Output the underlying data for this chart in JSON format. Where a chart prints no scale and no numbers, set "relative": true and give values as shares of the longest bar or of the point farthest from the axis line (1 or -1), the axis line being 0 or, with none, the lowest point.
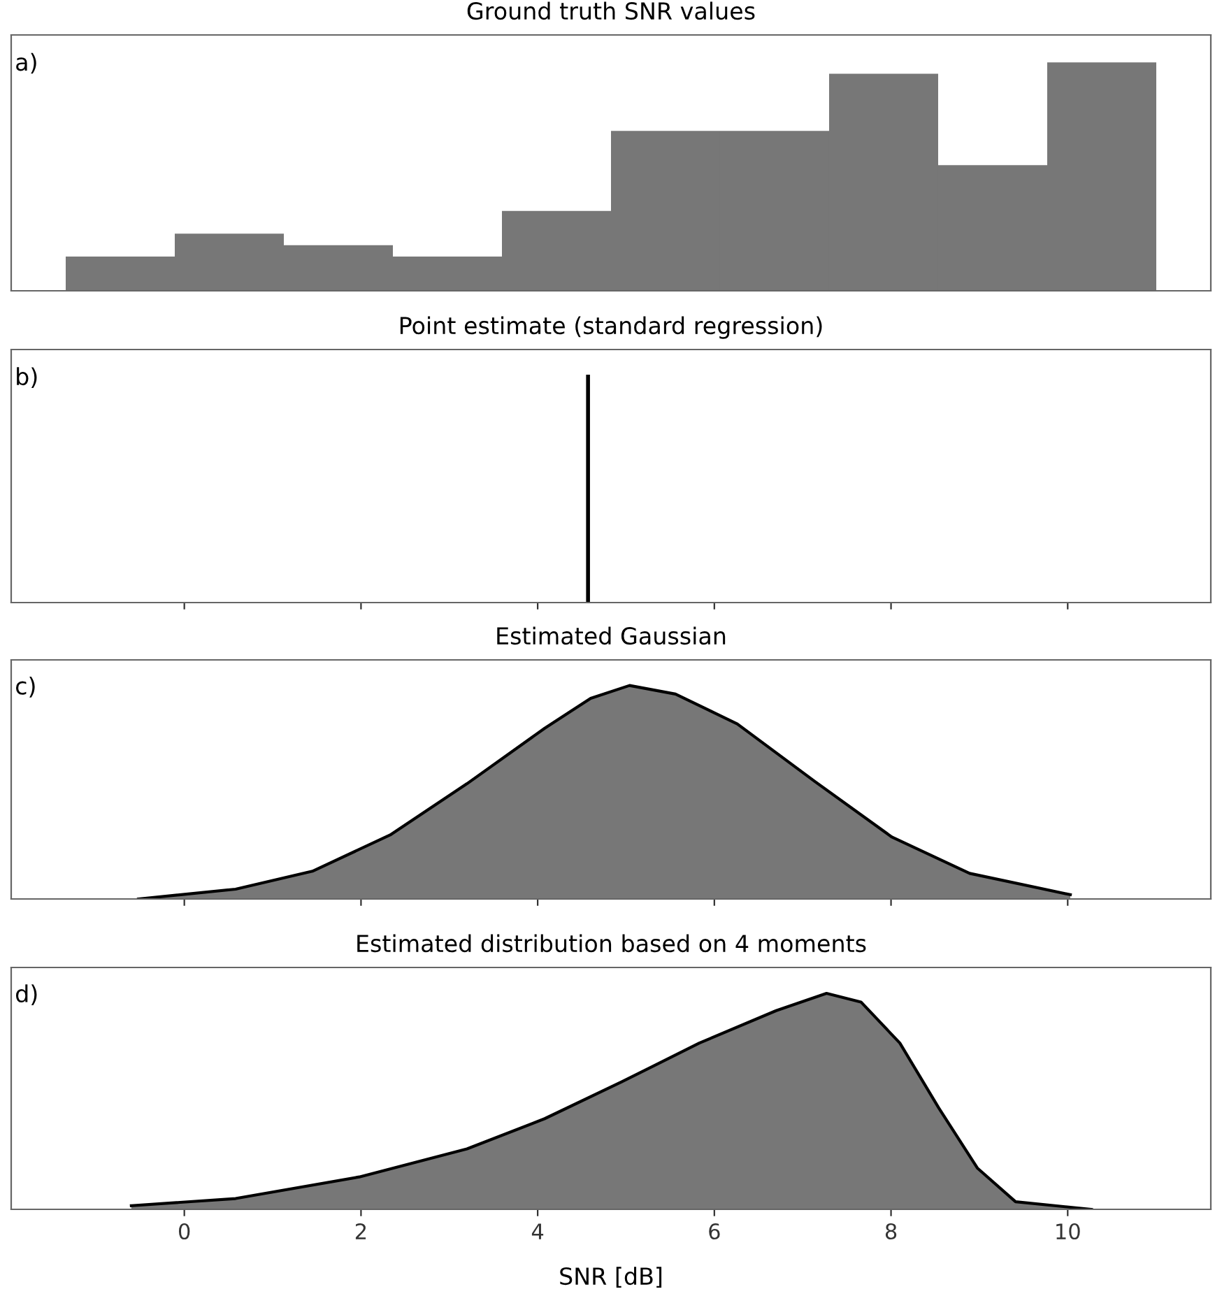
{
  "chart_data": [
    {
      "type": "bar",
      "title": "Ground truth SNR values",
      "relative": true,
      "annotations": [
        "a)"
      ],
      "color": "#777777",
      "categories": [
        null,
        null,
        null,
        null,
        null,
        null,
        null,
        null,
        null,
        null
      ],
      "values": [
        0.15,
        0.25,
        0.2,
        0.15,
        0.35,
        0.7,
        0.7,
        0.95,
        0.55,
        1
      ]
    },
    {
      "type": "line",
      "title": "Point estimate (standard regression)",
      "relative": true,
      "annotations": [
        "b)"
      ],
      "color": "#000000",
      "x": [
        4.57,
        4.57
      ],
      "values": [
        0,
        1
      ],
      "xlim": [
        -1.96,
        11.62
      ],
      "xticks": [
        {
          "value": 0,
          "label": null
        },
        {
          "value": 2,
          "label": null
        },
        {
          "value": 4,
          "label": null
        },
        {
          "value": 6,
          "label": null
        },
        {
          "value": 8,
          "label": null
        },
        {
          "value": 10,
          "label": null
        }
      ],
      "tick_labels": false
    },
    {
      "type": "area",
      "title": "Estimated Gaussian",
      "relative": true,
      "annotations": [
        "c)"
      ],
      "color": "#777777",
      "x": [
        -0.52,
        0.58,
        1.45,
        2.33,
        3.2,
        4.08,
        4.6,
        5.04,
        5.56,
        6.26,
        7.14,
        8.01,
        8.89,
        10.03
      ],
      "values": [
        0,
        0.046,
        0.13,
        0.3,
        0.54,
        0.8,
        0.94,
        1,
        0.96,
        0.82,
        0.55,
        0.29,
        0.12,
        0.02
      ],
      "xlim": [
        -1.96,
        11.62
      ],
      "xticks": [
        {
          "value": 0,
          "label": null
        },
        {
          "value": 2,
          "label": null
        },
        {
          "value": 4,
          "label": null
        },
        {
          "value": 6,
          "label": null
        },
        {
          "value": 8,
          "label": null
        },
        {
          "value": 10,
          "label": null
        }
      ],
      "tick_labels": false
    },
    {
      "type": "area",
      "title": "Estimated distribution based on 4 moments",
      "xlabel": "SNR [dB]",
      "relative": true,
      "annotations": [
        "d)"
      ],
      "color": "#777777",
      "x": [
        -0.6,
        0.58,
        1.98,
        3.2,
        4.08,
        4.95,
        5.83,
        6.7,
        7.27,
        7.66,
        8.1,
        8.54,
        8.98,
        9.41,
        10.27
      ],
      "values": [
        0.017,
        0.05,
        0.15,
        0.28,
        0.42,
        0.59,
        0.77,
        0.92,
        1,
        0.96,
        0.77,
        0.47,
        0.19,
        0.035,
        0
      ],
      "xlim": [
        -1.96,
        11.62
      ],
      "xticks": [
        0,
        2,
        4,
        6,
        8,
        10
      ],
      "tick_labels": "x"
    }
  ]
}
